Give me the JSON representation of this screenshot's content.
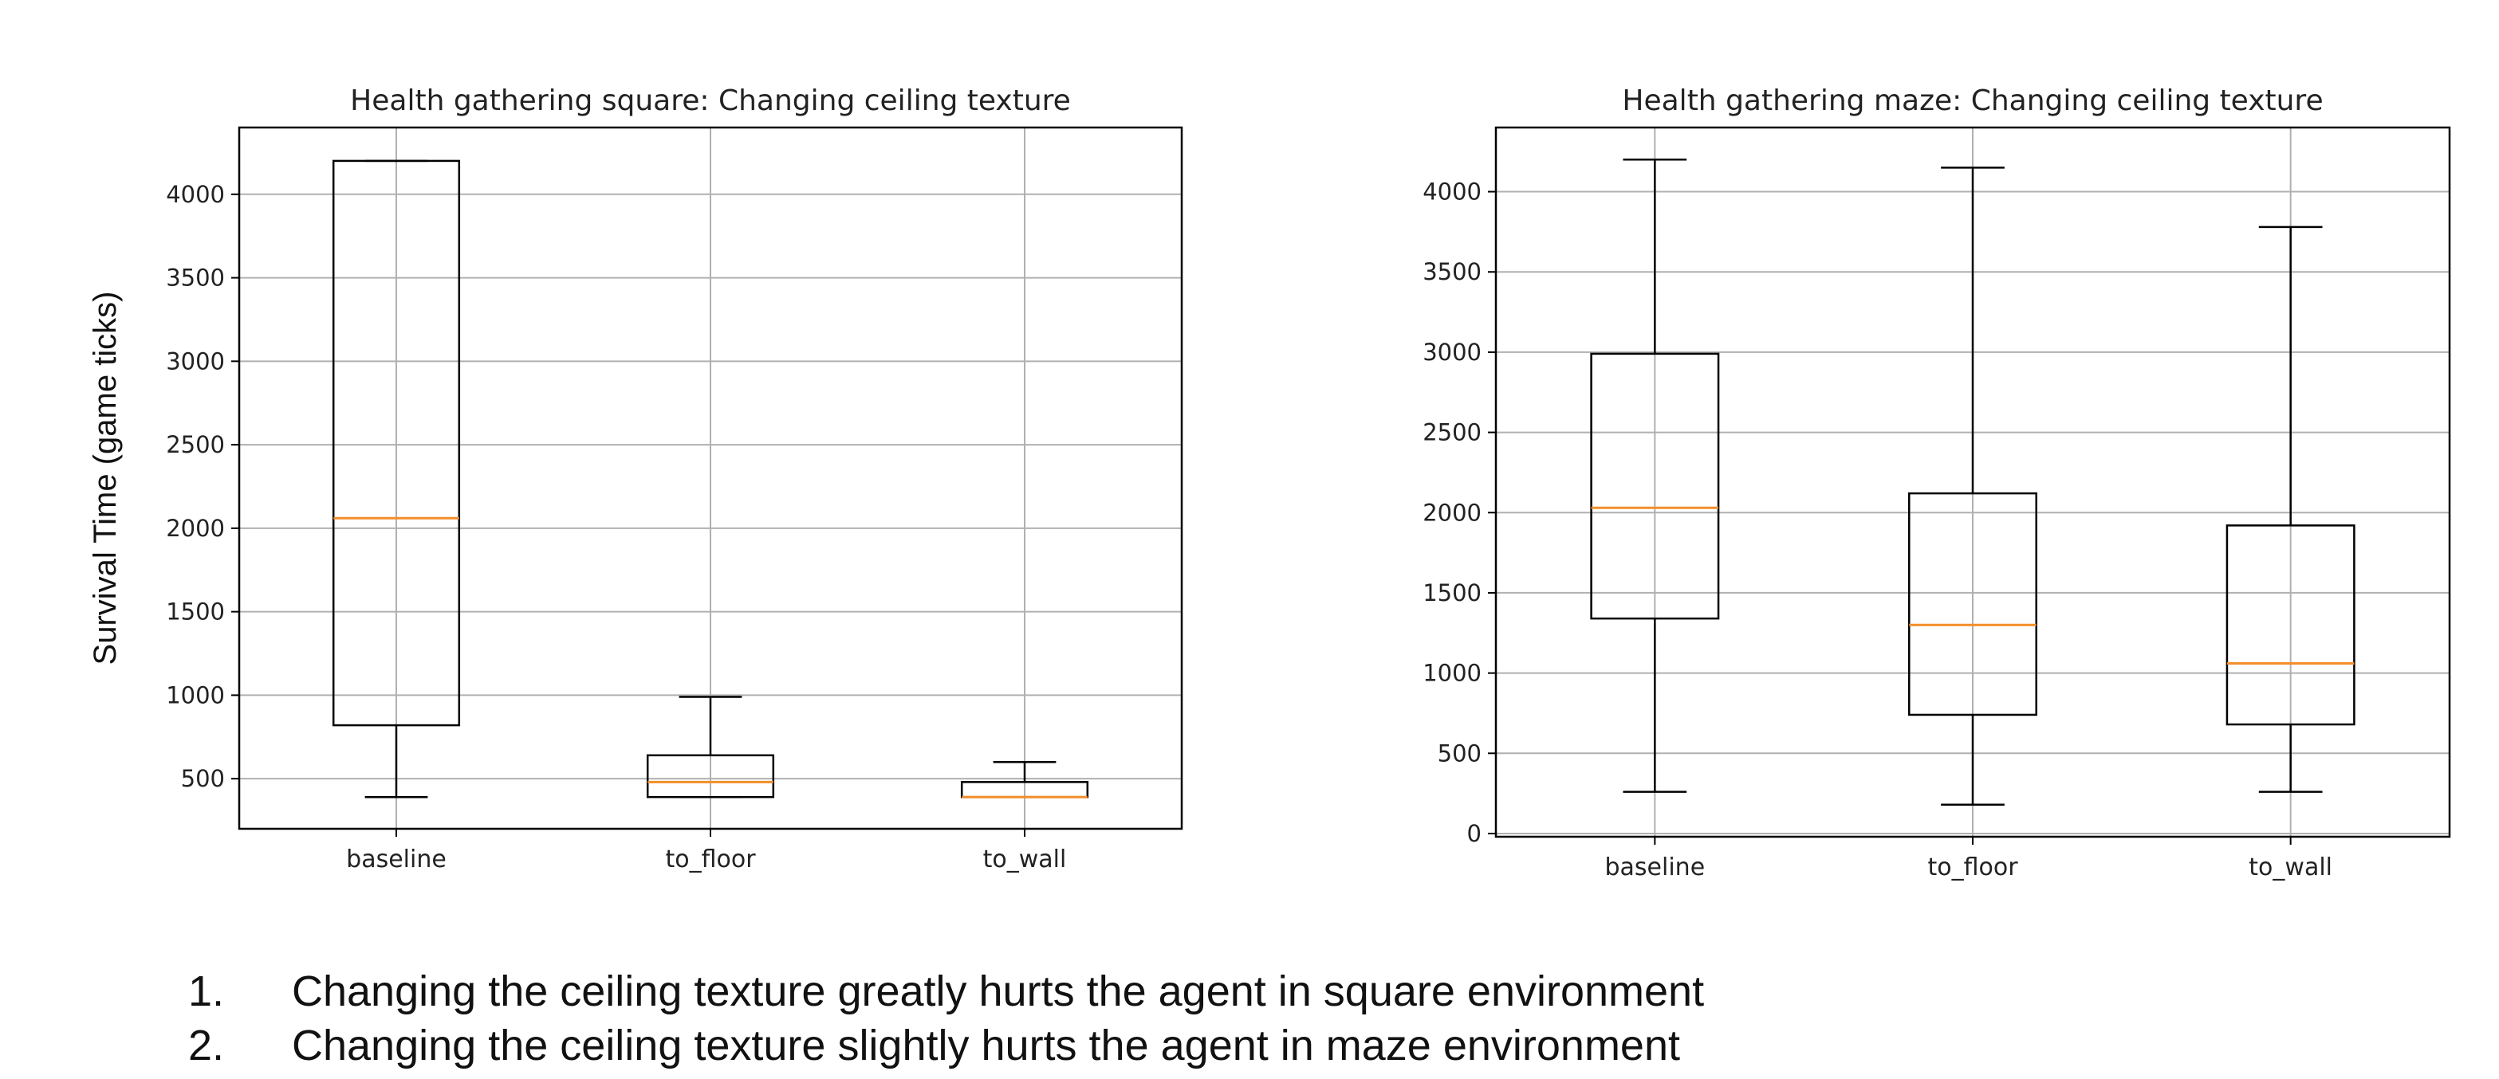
{
  "charts_ylabel": "Survival Time (game ticks)",
  "colors": {
    "box": "#000000",
    "median": "#f28e2b",
    "grid": "#b0b0b0"
  },
  "chart_data": [
    {
      "type": "boxplot",
      "title": "Health gathering square: Changing ceiling texture",
      "ylabel": "Survival Time (game ticks)",
      "xlabel": "",
      "categories": [
        "baseline",
        "to_floor",
        "to_wall"
      ],
      "ylim": [
        200,
        4400
      ],
      "yticks": [
        500,
        1000,
        1500,
        2000,
        2500,
        3000,
        3500,
        4000
      ],
      "grid": true,
      "boxes": [
        {
          "category": "baseline",
          "whisker_low": 390,
          "q1": 820,
          "median": 2060,
          "q3": 4200,
          "whisker_high": 4200
        },
        {
          "category": "to_floor",
          "whisker_low": 390,
          "q1": 390,
          "median": 480,
          "q3": 640,
          "whisker_high": 990
        },
        {
          "category": "to_wall",
          "whisker_low": 390,
          "q1": 390,
          "median": 390,
          "q3": 480,
          "whisker_high": 600
        }
      ]
    },
    {
      "type": "boxplot",
      "title": "Health gathering maze: Changing ceiling texture",
      "ylabel": "",
      "xlabel": "",
      "categories": [
        "baseline",
        "to_floor",
        "to_wall"
      ],
      "ylim": [
        -20,
        4400
      ],
      "yticks": [
        0,
        500,
        1000,
        1500,
        2000,
        2500,
        3000,
        3500,
        4000
      ],
      "grid": true,
      "boxes": [
        {
          "category": "baseline",
          "whisker_low": 260,
          "q1": 1340,
          "median": 2030,
          "q3": 2990,
          "whisker_high": 4200
        },
        {
          "category": "to_floor",
          "whisker_low": 180,
          "q1": 740,
          "median": 1300,
          "q3": 2120,
          "whisker_high": 4150
        },
        {
          "category": "to_wall",
          "whisker_low": 260,
          "q1": 680,
          "median": 1060,
          "q3": 1920,
          "whisker_high": 3780
        }
      ]
    }
  ],
  "notes": [
    {
      "num": "1.",
      "text": "Changing the ceiling texture greatly hurts the agent in square environment"
    },
    {
      "num": "2.",
      "text": "Changing the ceiling texture slightly hurts the agent in maze environment"
    }
  ]
}
